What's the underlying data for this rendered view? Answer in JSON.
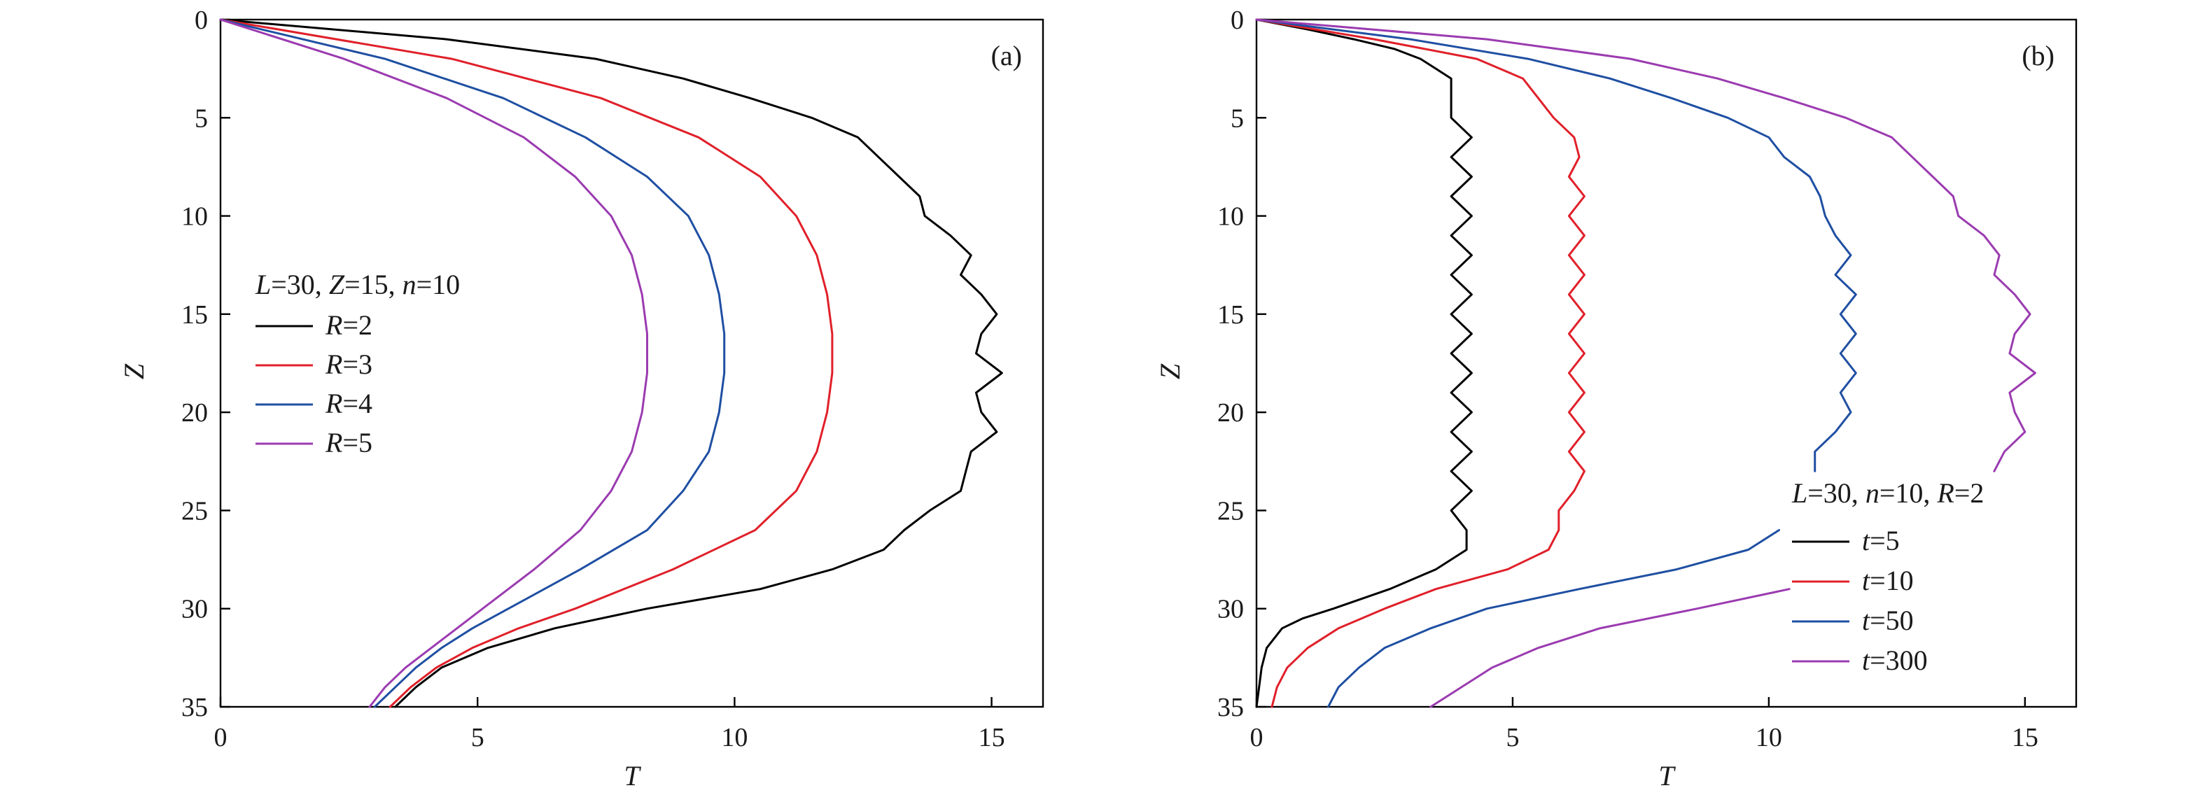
{
  "chart_data": [
    {
      "type": "line",
      "panel_label": "(a)",
      "xlabel": "T",
      "ylabel": "Z",
      "xlim": [
        0,
        16
      ],
      "ylim": [
        0,
        35
      ],
      "y_inverted": true,
      "x_ticks": [
        0,
        5,
        10,
        15
      ],
      "y_ticks": [
        0,
        5,
        10,
        15,
        20,
        25,
        30,
        35
      ],
      "legend": {
        "title_parts": [
          {
            "text": "L",
            "italic": true
          },
          {
            "text": "=30, ",
            "italic": false
          },
          {
            "text": "Z",
            "italic": true
          },
          {
            "text": "=15, ",
            "italic": false
          },
          {
            "text": "n",
            "italic": true
          },
          {
            "text": "=10",
            "italic": false
          }
        ],
        "placement": "center-left"
      },
      "series": [
        {
          "name": "R=2",
          "var": "R",
          "val": "=2",
          "color": "#000000",
          "z": [
            0,
            1,
            2,
            3,
            4,
            5,
            6,
            7,
            8,
            9,
            10,
            11,
            12,
            13,
            14,
            15,
            16,
            17,
            18,
            19,
            20,
            21,
            22,
            23,
            24,
            25,
            26,
            27,
            28,
            29,
            30,
            31,
            32,
            33,
            34,
            35
          ],
          "t": [
            0,
            4.4,
            7.3,
            9.0,
            10.3,
            11.5,
            12.4,
            12.8,
            13.2,
            13.6,
            13.7,
            14.2,
            14.6,
            14.4,
            14.8,
            15.1,
            14.8,
            14.7,
            15.2,
            14.7,
            14.8,
            15.1,
            14.6,
            14.5,
            14.4,
            13.8,
            13.3,
            12.9,
            11.9,
            10.5,
            8.3,
            6.5,
            5.2,
            4.3,
            3.8,
            3.4
          ]
        },
        {
          "name": "R=3",
          "var": "R",
          "val": "=3",
          "color": "#e0202a",
          "z": [
            0,
            2,
            4,
            6,
            8,
            10,
            12,
            14,
            16,
            18,
            20,
            22,
            24,
            26,
            28,
            30,
            31,
            32,
            33,
            34,
            35
          ],
          "t": [
            0,
            4.5,
            7.4,
            9.3,
            10.5,
            11.2,
            11.6,
            11.8,
            11.9,
            11.9,
            11.8,
            11.6,
            11.2,
            10.4,
            8.8,
            6.9,
            5.8,
            4.9,
            4.2,
            3.7,
            3.3
          ]
        },
        {
          "name": "R=4",
          "var": "R",
          "val": "=4",
          "color": "#1f4fa2",
          "z": [
            0,
            2,
            4,
            6,
            8,
            10,
            12,
            14,
            16,
            18,
            20,
            22,
            24,
            26,
            28,
            30,
            31,
            32,
            33,
            34,
            35
          ],
          "t": [
            0,
            3.2,
            5.5,
            7.1,
            8.3,
            9.1,
            9.5,
            9.7,
            9.8,
            9.8,
            9.7,
            9.5,
            9.0,
            8.3,
            7.0,
            5.6,
            4.9,
            4.3,
            3.8,
            3.4,
            3.0
          ]
        },
        {
          "name": "R=5",
          "var": "R",
          "val": "=5",
          "color": "#9b3bb0",
          "z": [
            0,
            2,
            4,
            6,
            8,
            10,
            12,
            14,
            16,
            18,
            20,
            22,
            24,
            26,
            28,
            30,
            31,
            32,
            33,
            34,
            35
          ],
          "t": [
            0,
            2.4,
            4.4,
            5.9,
            6.9,
            7.6,
            8.0,
            8.2,
            8.3,
            8.3,
            8.2,
            8.0,
            7.6,
            7.0,
            6.1,
            5.1,
            4.6,
            4.1,
            3.6,
            3.2,
            2.9
          ]
        }
      ]
    },
    {
      "type": "line",
      "panel_label": "(b)",
      "xlabel": "T",
      "ylabel": "Z",
      "xlim": [
        0,
        16
      ],
      "ylim": [
        0,
        35
      ],
      "y_inverted": true,
      "x_ticks": [
        0,
        5,
        10,
        15
      ],
      "y_ticks": [
        0,
        5,
        10,
        15,
        20,
        25,
        30,
        35
      ],
      "legend": {
        "title_parts": [
          {
            "text": "L",
            "italic": true
          },
          {
            "text": "=30, ",
            "italic": false
          },
          {
            "text": "n",
            "italic": true
          },
          {
            "text": "=10, ",
            "italic": false
          },
          {
            "text": "R",
            "italic": true
          },
          {
            "text": "=2",
            "italic": false
          }
        ],
        "placement": "bottom-right"
      },
      "series": [
        {
          "name": "t=5",
          "var": "t",
          "val": "=5",
          "color": "#000000",
          "z": [
            0,
            0.5,
            1,
            1.5,
            2,
            2.5,
            3,
            4,
            5,
            6,
            7,
            8,
            9,
            10,
            11,
            12,
            13,
            14,
            15,
            16,
            17,
            18,
            19,
            20,
            21,
            22,
            23,
            24,
            25,
            26,
            27,
            28,
            29,
            30,
            30.5,
            31,
            32,
            33,
            34,
            35
          ],
          "t": [
            0,
            1.0,
            1.9,
            2.7,
            3.2,
            3.5,
            3.8,
            3.8,
            3.8,
            4.2,
            3.8,
            4.2,
            3.8,
            4.2,
            3.8,
            4.2,
            3.8,
            4.2,
            3.8,
            4.2,
            3.8,
            4.2,
            3.8,
            4.2,
            3.8,
            4.2,
            3.8,
            4.2,
            3.8,
            4.1,
            4.1,
            3.5,
            2.6,
            1.5,
            0.9,
            0.5,
            0.2,
            0.1,
            0.05,
            0
          ]
        },
        {
          "name": "t=10",
          "var": "t",
          "val": "=10",
          "color": "#e0202a",
          "z": [
            0,
            1,
            2,
            3,
            4,
            5,
            6,
            7,
            8,
            9,
            10,
            11,
            12,
            13,
            14,
            15,
            16,
            17,
            18,
            19,
            20,
            21,
            22,
            23,
            24,
            25,
            26,
            27,
            28,
            29,
            30,
            31,
            32,
            33,
            34,
            35
          ],
          "t": [
            0,
            2.3,
            4.3,
            5.2,
            5.5,
            5.8,
            6.2,
            6.3,
            6.1,
            6.4,
            6.1,
            6.4,
            6.1,
            6.4,
            6.1,
            6.4,
            6.1,
            6.4,
            6.1,
            6.4,
            6.1,
            6.4,
            6.1,
            6.4,
            6.2,
            5.9,
            5.9,
            5.7,
            4.9,
            3.5,
            2.5,
            1.6,
            1.0,
            0.6,
            0.4,
            0.3
          ]
        },
        {
          "name": "t=50",
          "var": "t",
          "val": "=50",
          "color": "#1f4fa2",
          "z": [
            0,
            1,
            2,
            3,
            4,
            5,
            6,
            7,
            8,
            9,
            10,
            11,
            12,
            13,
            14,
            15,
            16,
            17,
            18,
            19,
            20,
            21,
            22,
            23
          ],
          "t": [
            0,
            3.0,
            5.3,
            6.9,
            8.1,
            9.2,
            10.0,
            10.3,
            10.8,
            11.0,
            11.1,
            11.3,
            11.6,
            11.3,
            11.7,
            11.4,
            11.7,
            11.4,
            11.7,
            11.4,
            11.6,
            11.3,
            10.9,
            10.9
          ]
        },
        {
          "name": "t=50-lower",
          "color": "#1f4fa2",
          "z": [
            26,
            27,
            28,
            29,
            30,
            31,
            32,
            33,
            34,
            35
          ],
          "t": [
            10.2,
            9.6,
            8.2,
            6.3,
            4.5,
            3.4,
            2.5,
            2.0,
            1.6,
            1.4
          ]
        },
        {
          "name": "t=300",
          "var": "t",
          "val": "=300",
          "color": "#9b3bb0",
          "z": [
            0,
            1,
            2,
            3,
            4,
            5,
            6,
            7,
            8,
            9,
            10,
            11,
            12,
            13,
            14,
            15,
            16,
            17,
            18,
            19,
            20,
            21,
            22,
            23
          ],
          "t": [
            0,
            4.5,
            7.3,
            9.0,
            10.3,
            11.5,
            12.4,
            12.8,
            13.2,
            13.6,
            13.7,
            14.2,
            14.5,
            14.4,
            14.8,
            15.1,
            14.8,
            14.7,
            15.2,
            14.7,
            14.8,
            15.0,
            14.6,
            14.4
          ]
        },
        {
          "name": "t=300-lower",
          "color": "#9b3bb0",
          "z": [
            29,
            30,
            31,
            32,
            33,
            34,
            35
          ],
          "t": [
            10.4,
            8.6,
            6.7,
            5.5,
            4.6,
            4.0,
            3.4
          ]
        }
      ]
    }
  ]
}
